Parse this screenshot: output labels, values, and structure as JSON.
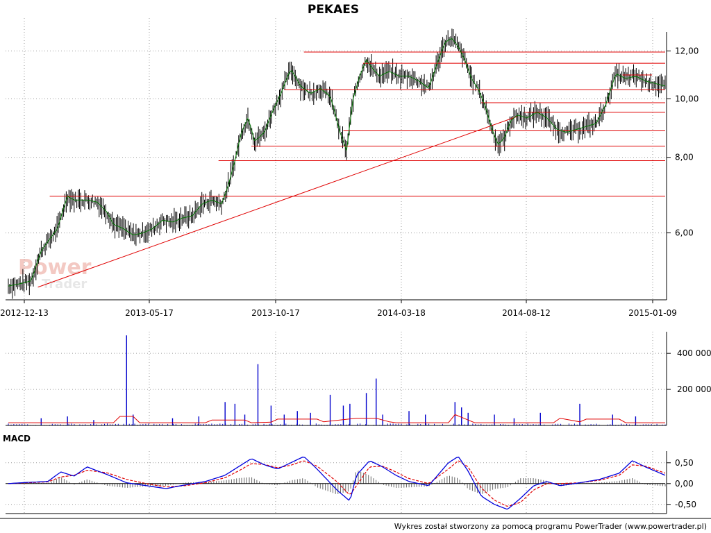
{
  "chart_data": {
    "type": "line",
    "title": "PEKAES",
    "x_tick_labels": [
      "2012-12-13",
      "2013-05-17",
      "2013-10-17",
      "2014-03-18",
      "2014-08-12",
      "2015-01-09"
    ],
    "price": {
      "y_tick_labels": [
        "12,00",
        "10,00",
        "8,00",
        "6,00"
      ],
      "y_tick_values": [
        12.0,
        10.0,
        8.0,
        6.0
      ],
      "ylim": [
        4.65,
        12.9
      ],
      "scale": "log",
      "grid": true,
      "moving_average_color": "#007700",
      "bar_color": "#000000",
      "path_x": [
        0,
        0.02,
        0.035,
        0.05,
        0.06,
        0.075,
        0.09,
        0.1,
        0.12,
        0.135,
        0.15,
        0.16,
        0.175,
        0.19,
        0.205,
        0.22,
        0.235,
        0.25,
        0.265,
        0.28,
        0.295,
        0.31,
        0.325,
        0.335,
        0.345,
        0.355,
        0.365,
        0.375,
        0.39,
        0.4,
        0.415,
        0.43,
        0.445,
        0.46,
        0.475,
        0.49,
        0.505,
        0.515,
        0.525,
        0.535,
        0.545,
        0.555,
        0.565,
        0.58,
        0.595,
        0.61,
        0.625,
        0.64,
        0.655,
        0.665,
        0.675,
        0.685,
        0.695,
        0.705,
        0.715,
        0.725,
        0.735,
        0.745,
        0.755,
        0.765,
        0.775,
        0.79,
        0.805,
        0.82,
        0.835,
        0.85,
        0.865,
        0.88,
        0.895,
        0.91,
        0.925,
        0.94,
        0.955,
        0.97,
        0.985,
        1.0
      ],
      "path_y": [
        4.9,
        4.95,
        5.0,
        5.6,
        5.8,
        6.1,
        6.9,
        6.8,
        6.8,
        6.75,
        6.5,
        6.2,
        6.1,
        5.95,
        6.0,
        6.1,
        6.3,
        6.25,
        6.35,
        6.4,
        6.7,
        6.8,
        6.7,
        7.2,
        7.9,
        8.8,
        9.3,
        8.5,
        8.8,
        9.4,
        10.2,
        11.2,
        10.5,
        10.2,
        10.4,
        10.1,
        8.8,
        8.2,
        10.0,
        10.9,
        11.6,
        11.2,
        10.9,
        11.1,
        10.9,
        10.9,
        10.7,
        10.4,
        11.6,
        12.4,
        12.6,
        12.2,
        11.6,
        10.8,
        10.4,
        9.8,
        9.0,
        8.4,
        8.6,
        9.2,
        9.4,
        9.3,
        9.5,
        9.3,
        8.9,
        8.8,
        8.9,
        9.0,
        9.1,
        9.8,
        11.0,
        10.8,
        10.9,
        10.7,
        10.6,
        10.5
      ],
      "horizontal_lines": [
        {
          "value": 11.95,
          "x_start": 0.45,
          "x_end": 1.0
        },
        {
          "value": 11.45,
          "x_start": 0.54,
          "x_end": 1.0
        },
        {
          "value": 10.95,
          "x_start": 0.935,
          "x_end": 0.98
        },
        {
          "value": 10.35,
          "x_start": 0.42,
          "x_end": 1.0
        },
        {
          "value": 9.85,
          "x_start": 0.72,
          "x_end": 1.0
        },
        {
          "value": 9.5,
          "x_start": 0.785,
          "x_end": 1.0
        },
        {
          "value": 8.85,
          "x_start": 0.51,
          "x_end": 1.0
        },
        {
          "value": 8.35,
          "x_start": 0.37,
          "x_end": 1.0
        },
        {
          "value": 7.9,
          "x_start": 0.32,
          "x_end": 1.0
        },
        {
          "value": 6.9,
          "x_start": 0.063,
          "x_end": 1.0
        }
      ],
      "trendline": {
        "x_start": 0.045,
        "value_start": 4.88,
        "x_end": 0.775,
        "value_end": 9.35
      },
      "trend_color": "#e00000"
    },
    "volume": {
      "y_tick_labels": [
        "400 000",
        "200 000"
      ],
      "y_tick_values": [
        400000,
        200000
      ],
      "ylim": [
        0,
        520000
      ],
      "bar_color": "#0000cc",
      "average_color": "#e00000",
      "spikes_x": [
        0.05,
        0.09,
        0.13,
        0.18,
        0.19,
        0.25,
        0.29,
        0.33,
        0.345,
        0.36,
        0.38,
        0.4,
        0.42,
        0.44,
        0.46,
        0.49,
        0.51,
        0.52,
        0.545,
        0.56,
        0.57,
        0.61,
        0.635,
        0.68,
        0.69,
        0.7,
        0.74,
        0.77,
        0.81,
        0.87,
        0.92,
        0.955
      ],
      "spikes_value": [
        40000,
        50000,
        30000,
        500000,
        60000,
        40000,
        50000,
        130000,
        120000,
        60000,
        340000,
        110000,
        60000,
        80000,
        70000,
        170000,
        110000,
        120000,
        180000,
        260000,
        60000,
        80000,
        60000,
        130000,
        100000,
        70000,
        60000,
        40000,
        70000,
        120000,
        60000,
        50000
      ],
      "average_x": [
        0,
        0.16,
        0.17,
        0.19,
        0.2,
        0.3,
        0.31,
        0.36,
        0.37,
        0.4,
        0.41,
        0.47,
        0.48,
        0.53,
        0.56,
        0.58,
        0.59,
        0.67,
        0.68,
        0.7,
        0.71,
        0.83,
        0.84,
        0.87,
        0.88,
        0.93,
        0.94,
        1.0
      ],
      "average_value": [
        15000,
        15000,
        50000,
        50000,
        15000,
        15000,
        30000,
        30000,
        15000,
        18000,
        35000,
        35000,
        20000,
        40000,
        40000,
        20000,
        15000,
        15000,
        60000,
        30000,
        15000,
        15000,
        40000,
        20000,
        35000,
        35000,
        15000,
        15000
      ]
    },
    "macd": {
      "label": "MACD",
      "y_tick_labels": [
        "0,50",
        "0,00",
        "-0,50"
      ],
      "y_tick_values": [
        0.5,
        0.0,
        -0.5
      ],
      "ylim": [
        -0.72,
        0.78
      ],
      "macd_color": "#0000dd",
      "signal_color": "#e00000",
      "histogram_color": "#666666",
      "path_x": [
        0,
        0.03,
        0.06,
        0.08,
        0.1,
        0.12,
        0.15,
        0.18,
        0.21,
        0.24,
        0.27,
        0.3,
        0.33,
        0.35,
        0.37,
        0.39,
        0.41,
        0.43,
        0.45,
        0.47,
        0.5,
        0.52,
        0.53,
        0.55,
        0.57,
        0.59,
        0.61,
        0.64,
        0.67,
        0.685,
        0.7,
        0.72,
        0.74,
        0.76,
        0.78,
        0.8,
        0.82,
        0.84,
        0.87,
        0.9,
        0.93,
        0.95,
        0.97,
        1.0
      ],
      "macd_values": [
        0.0,
        0.03,
        0.05,
        0.28,
        0.18,
        0.4,
        0.22,
        0.02,
        -0.05,
        -0.12,
        -0.03,
        0.05,
        0.2,
        0.4,
        0.6,
        0.45,
        0.35,
        0.5,
        0.65,
        0.35,
        -0.15,
        -0.42,
        0.2,
        0.55,
        0.4,
        0.2,
        0.05,
        -0.05,
        0.5,
        0.65,
        0.3,
        -0.3,
        -0.5,
        -0.62,
        -0.35,
        -0.05,
        0.05,
        -0.05,
        0.02,
        0.1,
        0.25,
        0.55,
        0.4,
        0.2
      ],
      "signal_values": [
        0.0,
        0.02,
        0.04,
        0.16,
        0.2,
        0.32,
        0.26,
        0.1,
        0.0,
        -0.08,
        -0.05,
        0.02,
        0.14,
        0.3,
        0.48,
        0.46,
        0.38,
        0.44,
        0.55,
        0.42,
        0.05,
        -0.28,
        -0.05,
        0.4,
        0.42,
        0.28,
        0.12,
        0.0,
        0.35,
        0.55,
        0.4,
        -0.1,
        -0.4,
        -0.55,
        -0.45,
        -0.15,
        0.0,
        0.0,
        0.02,
        0.08,
        0.2,
        0.45,
        0.42,
        0.25
      ]
    },
    "watermark_lines": [
      "Power",
      "Trader"
    ],
    "credit": "Wykres został stworzony za pomocą programu PowerTrader (www.powertrader.pl)"
  }
}
